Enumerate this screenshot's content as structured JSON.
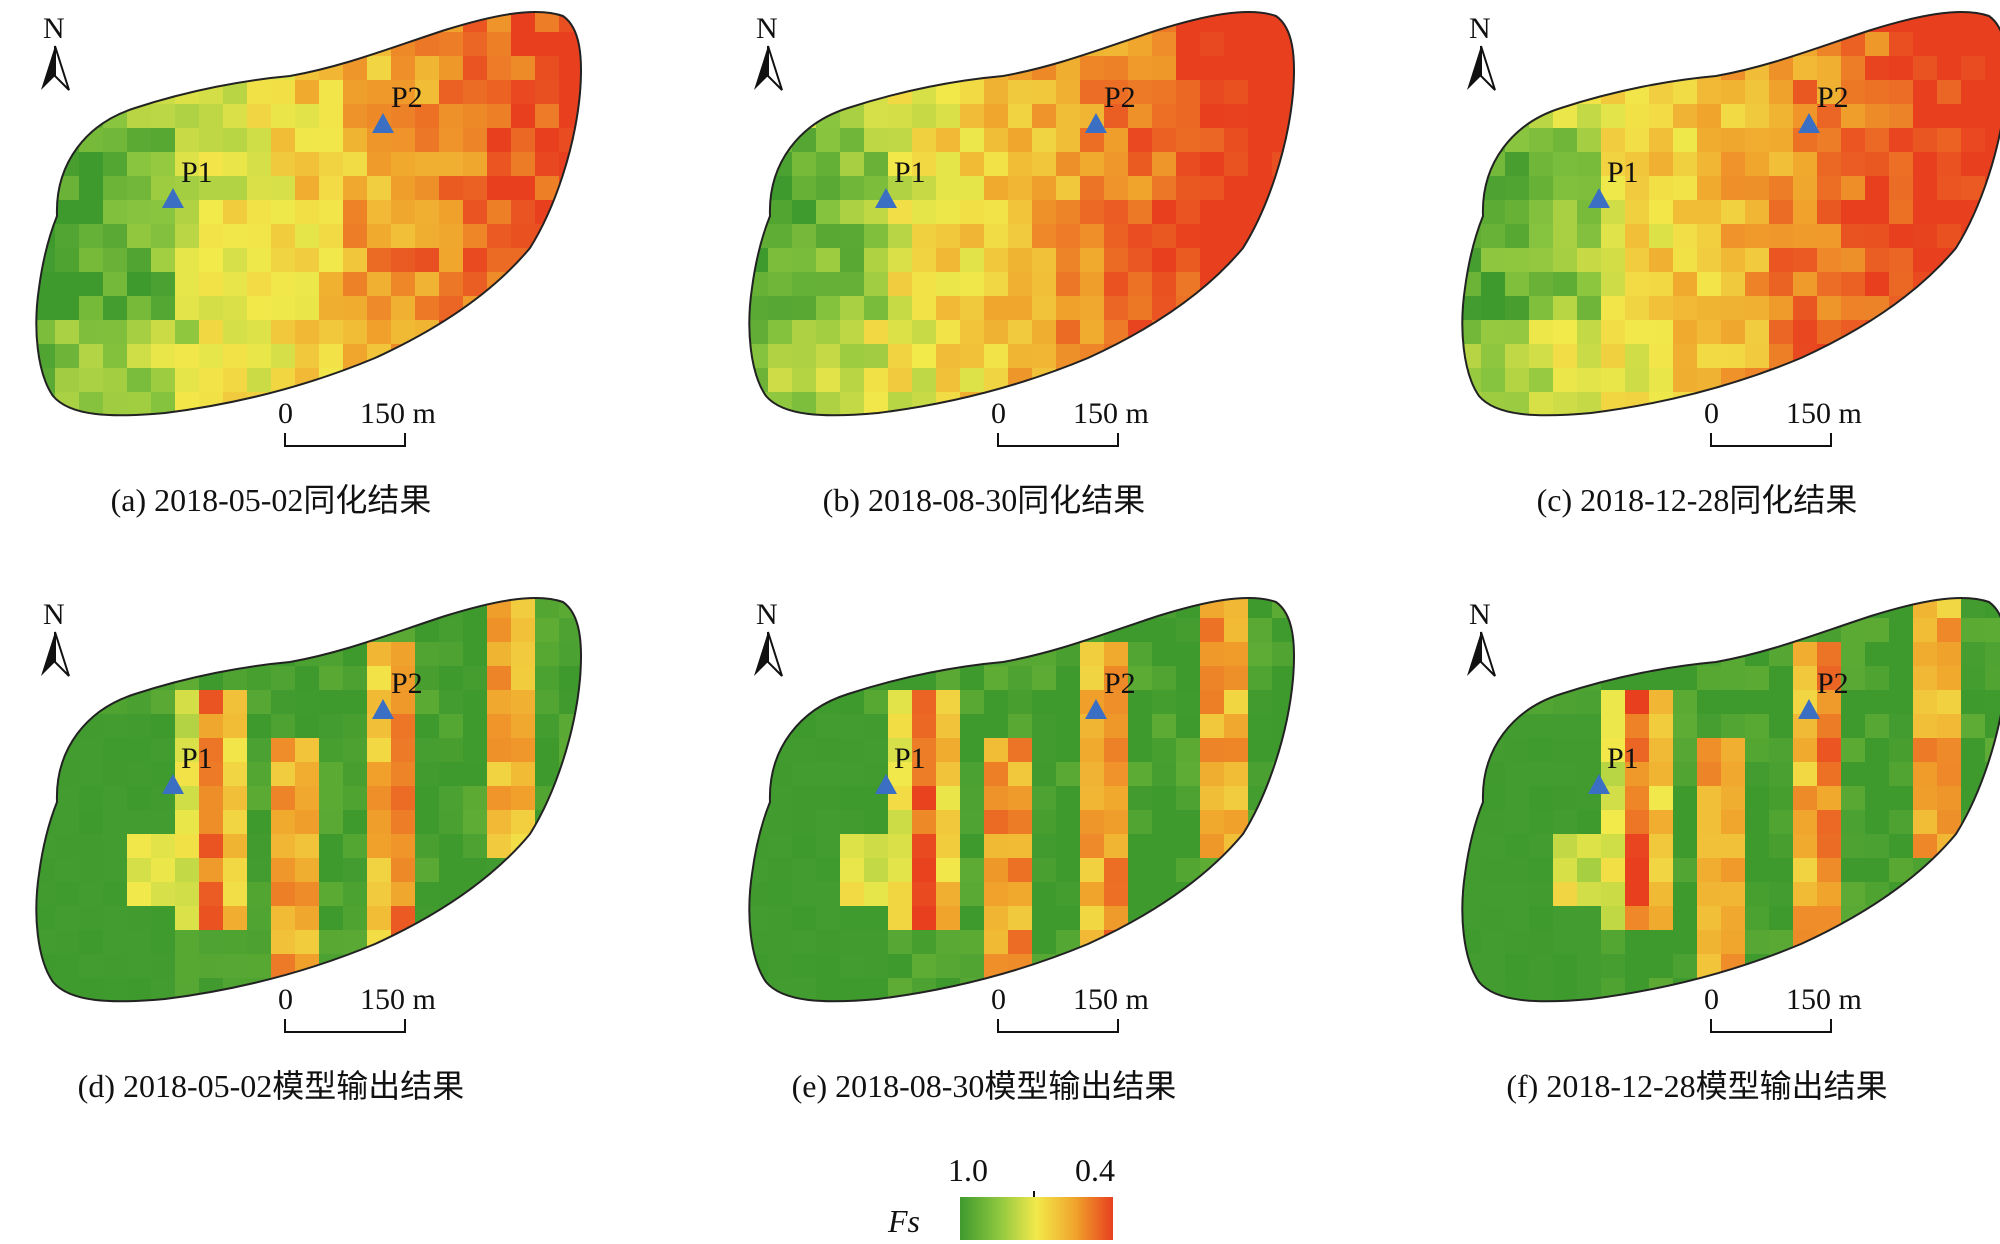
{
  "north_label": "N",
  "scale": {
    "zero": "0",
    "end": "150 m"
  },
  "points": [
    {
      "label": "P1",
      "color": "#3a6fc4"
    },
    {
      "label": "P2",
      "color": "#3a6fc4"
    }
  ],
  "panels": [
    {
      "id": "a",
      "caption": "(a) 2018-05-02同化结果",
      "kind": "assimilation",
      "seed": 11,
      "shift": 0.0
    },
    {
      "id": "b",
      "caption": "(b) 2018-08-30同化结果",
      "kind": "assimilation",
      "seed": 23,
      "shift": 0.08
    },
    {
      "id": "c",
      "caption": "(c) 2018-12-28同化结果",
      "kind": "assimilation",
      "seed": 37,
      "shift": 0.1
    },
    {
      "id": "d",
      "caption": "(d) 2018-05-02模型输出结果",
      "kind": "model",
      "seed": 41,
      "shift": 0.0
    },
    {
      "id": "e",
      "caption": "(e) 2018-08-30模型输出结果",
      "kind": "model",
      "seed": 53,
      "shift": 0.02
    },
    {
      "id": "f",
      "caption": "(f) 2018-12-28模型输出结果",
      "kind": "model",
      "seed": 67,
      "shift": 0.03
    }
  ],
  "legend": {
    "variable": "Fs",
    "min_label": "1.0",
    "max_label": "0.4",
    "colors": [
      "#3f9a2e",
      "#8cc63f",
      "#f2e94b",
      "#f0a52c",
      "#e8401f"
    ]
  }
}
